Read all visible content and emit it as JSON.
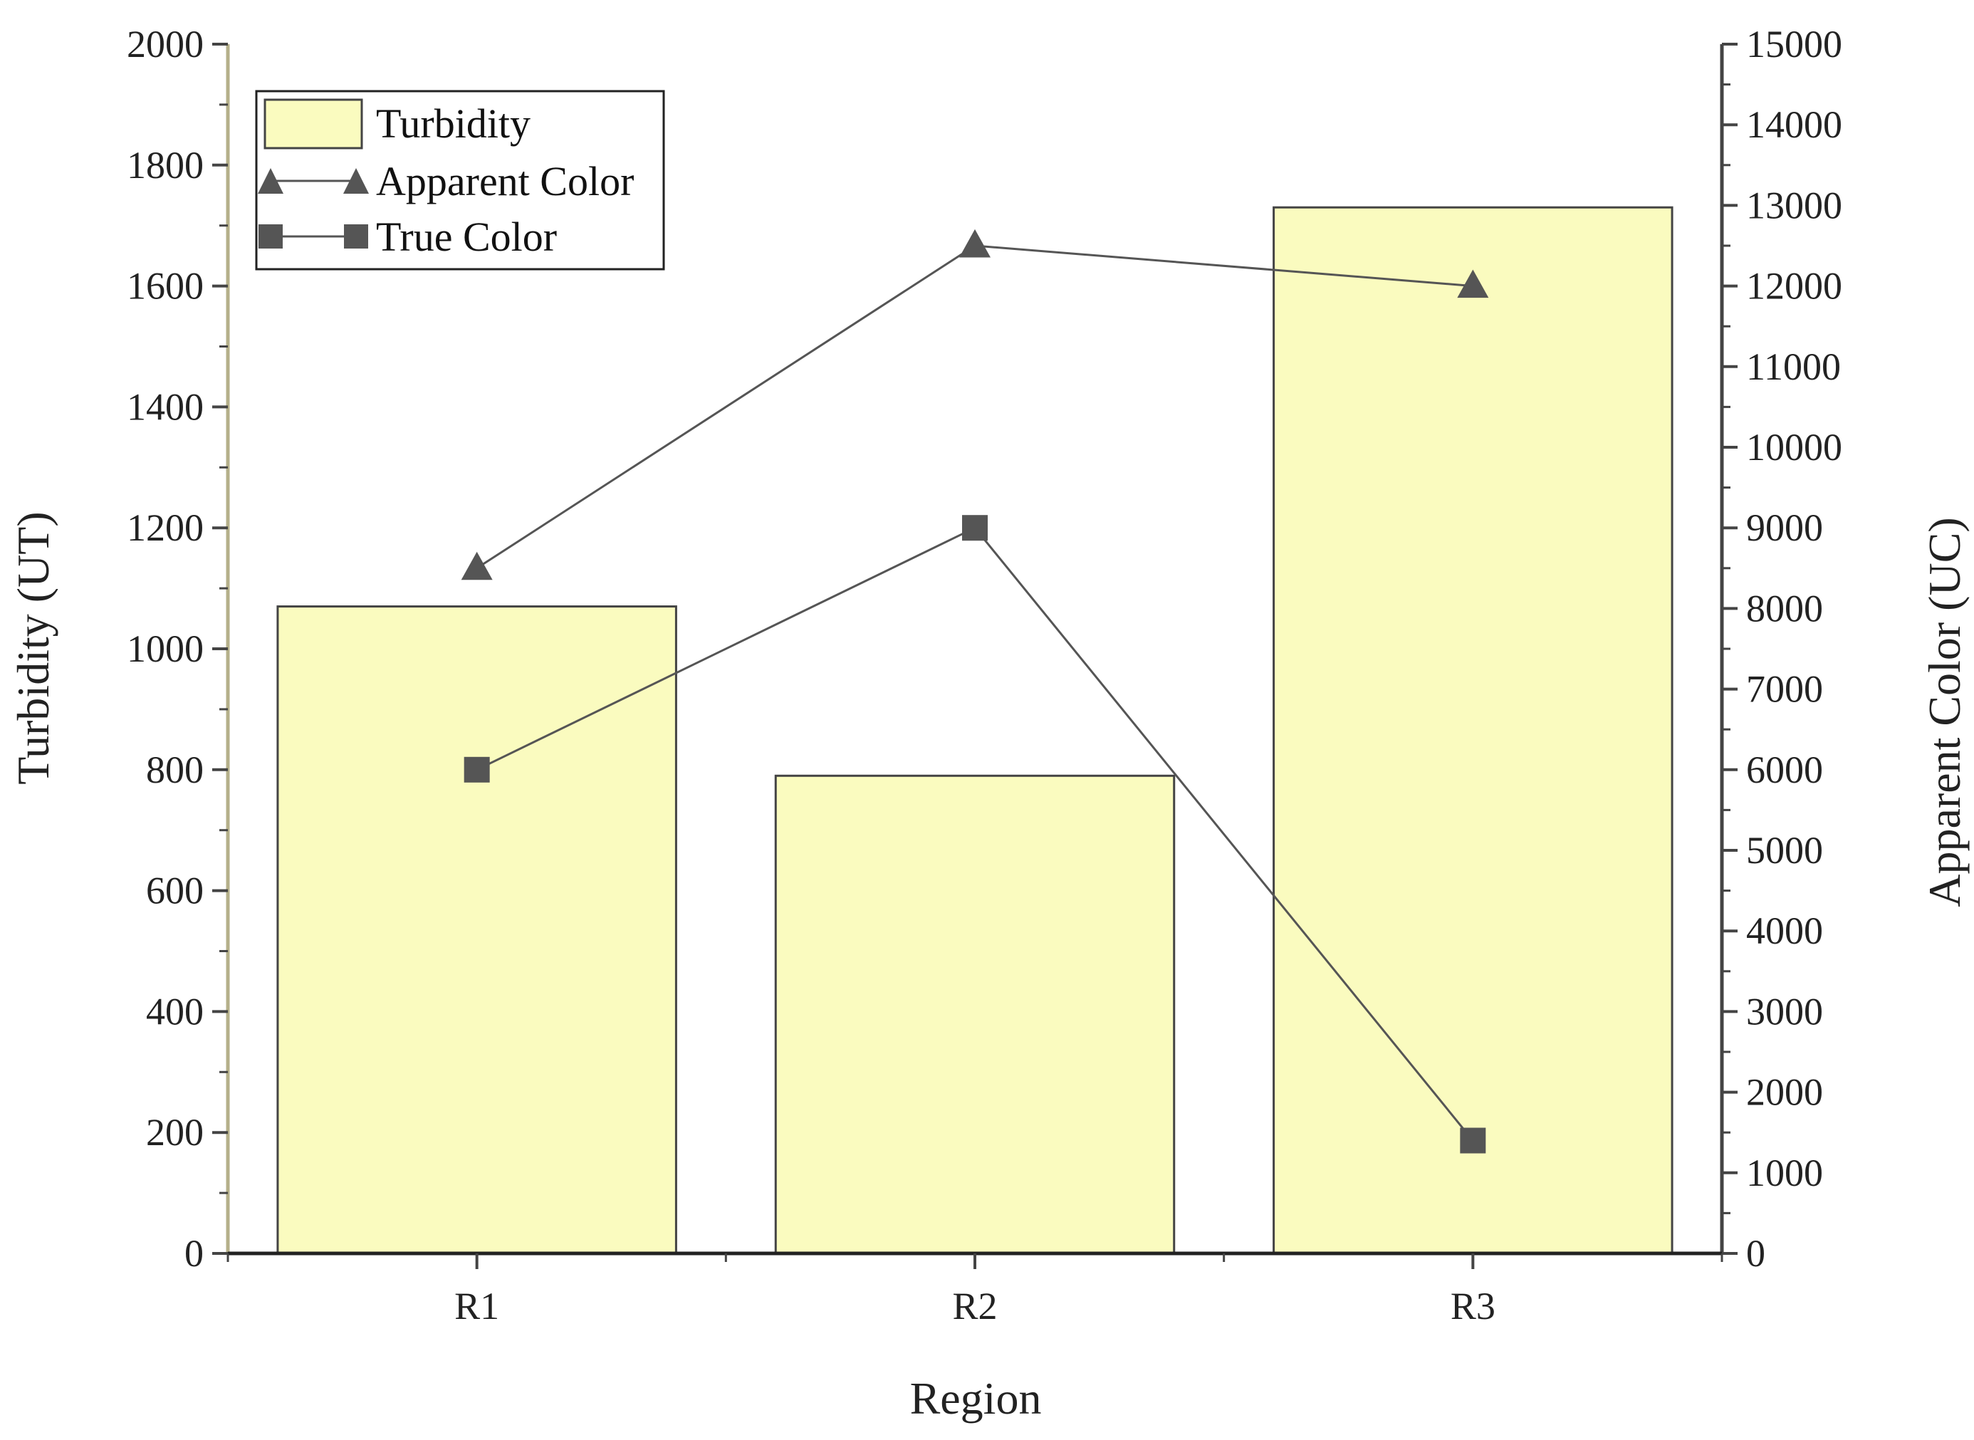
{
  "chart_data": {
    "type": "bar",
    "categories": [
      "R1",
      "R2",
      "R3"
    ],
    "xlabel": "Region",
    "ylabel": "Turbidity (UT)",
    "ylabel_right": "Apparent Color (UC)",
    "ylim": [
      0,
      2000
    ],
    "ylim_right": [
      0,
      15000
    ],
    "yticks": [
      "0",
      "200",
      "400",
      "600",
      "800",
      "1000",
      "1200",
      "1400",
      "1600",
      "1800",
      "2000"
    ],
    "yticks_right": [
      "0",
      "1000",
      "2000",
      "3000",
      "4000",
      "5000",
      "6000",
      "7000",
      "8000",
      "9000",
      "10000",
      "11000",
      "12000",
      "13000",
      "14000",
      "15000"
    ],
    "grid": false,
    "legend_position": "top-left",
    "series": [
      {
        "name": "Turbidity",
        "type": "bar",
        "axis": "left",
        "values": [
          1070,
          790,
          1730
        ],
        "color": "#fafbbf"
      },
      {
        "name": "Apparent Color",
        "type": "line",
        "marker": "triangle",
        "axis": "right",
        "values": [
          8500,
          12500,
          12000
        ],
        "color": "#555555"
      },
      {
        "name": "True Color",
        "type": "line",
        "marker": "square",
        "axis": "right",
        "values": [
          6000,
          9000,
          1400
        ],
        "color": "#555555"
      }
    ],
    "colors": {
      "left_axis": "#b5b08a",
      "right_axis": "#444444",
      "bar_edge": "#444444"
    }
  }
}
